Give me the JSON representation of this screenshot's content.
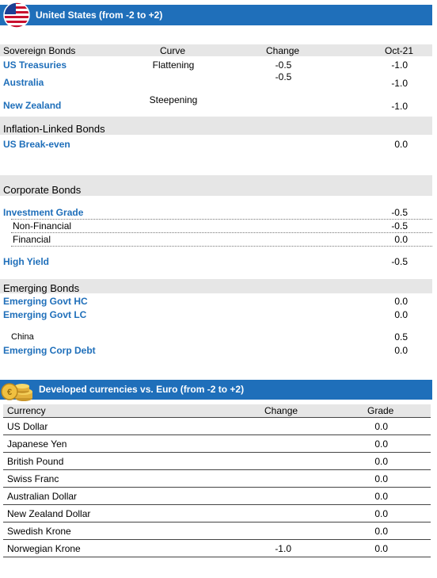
{
  "us_header": {
    "title": "United States (from -2 to +2)"
  },
  "columns": {
    "c1": "Sovereign Bonds",
    "c2": "Curve",
    "c3": "Change",
    "c4": "Oct-21"
  },
  "sovereign": [
    {
      "name": "US Treasuries",
      "curve": "Flattening",
      "change": "-0.5",
      "value": "-1.0"
    },
    {
      "name": "Australia",
      "curve": "",
      "change": "-0.5",
      "value": "-1.0"
    },
    {
      "name": "New Zealand",
      "curve": "Steepening",
      "change": "",
      "value": "-1.0"
    }
  ],
  "inflation": {
    "title": "Inflation-Linked Bonds",
    "rows": [
      {
        "name": "US Break-even",
        "value": "0.0"
      }
    ]
  },
  "corporate": {
    "title": "Corporate Bonds",
    "rows": [
      {
        "name": "Investment Grade",
        "value": "-0.5"
      },
      {
        "name": "Non-Financial",
        "value": "-0.5"
      },
      {
        "name": "Financial",
        "value": "0.0"
      },
      {
        "name": "High Yield",
        "value": "-0.5"
      }
    ]
  },
  "emerging": {
    "title": "Emerging Bonds",
    "rows": [
      {
        "name": "Emerging Govt HC",
        "value": "0.0"
      },
      {
        "name": "Emerging Govt LC",
        "value": "0.0"
      },
      {
        "name": "China",
        "value": "0.5"
      },
      {
        "name": "Emerging Corp Debt",
        "value": "0.0"
      }
    ]
  },
  "fx_header": {
    "title": "Developed currencies vs. Euro (from -2 to +2)"
  },
  "fx_columns": {
    "c1": "Currency",
    "c2": "Change",
    "c3": "Grade"
  },
  "fx_rows": [
    {
      "name": "US Dollar",
      "change": "",
      "grade": "0.0"
    },
    {
      "name": "Japanese Yen",
      "change": "",
      "grade": "0.0"
    },
    {
      "name": "British Pound",
      "change": "",
      "grade": "0.0"
    },
    {
      "name": "Swiss Franc",
      "change": "",
      "grade": "0.0"
    },
    {
      "name": "Australian Dollar",
      "change": "",
      "grade": "0.0"
    },
    {
      "name": "New Zealand Dollar",
      "change": "",
      "grade": "0.0"
    },
    {
      "name": "Swedish Krone",
      "change": "",
      "grade": "0.0"
    },
    {
      "name": "Norwegian Krone",
      "change": "-1.0",
      "grade": "0.0"
    }
  ],
  "colors": {
    "header_blue": "#1f6fba",
    "band_grey": "#e6e6e6"
  },
  "icons": {
    "us": "us-flag-icon",
    "fx": "coins-icon"
  }
}
